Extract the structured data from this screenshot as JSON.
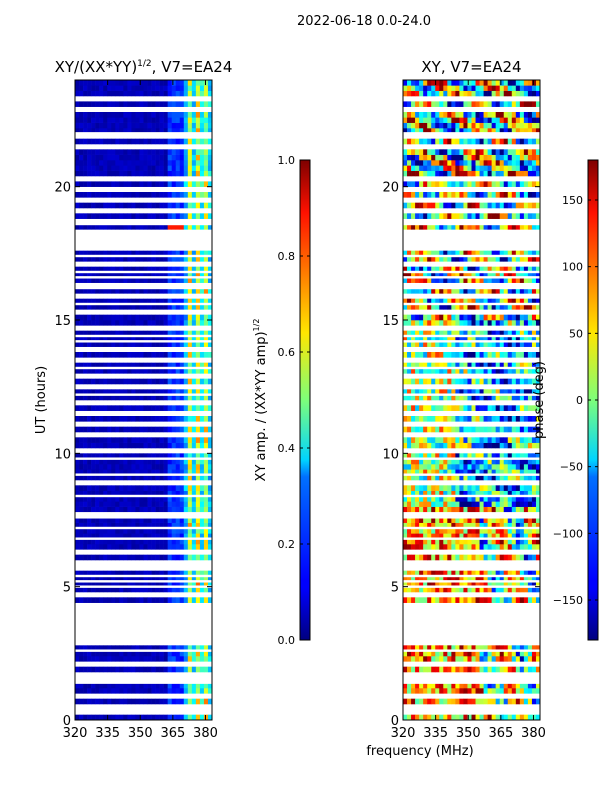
{
  "suptitle": "2022-06-18 0.0-24.0",
  "chart_data": [
    {
      "type": "heatmap",
      "title_main": "XY/(XX*YY)",
      "title_sup": "1/2",
      "title_tail": ", V7=EA24",
      "xlabel": "",
      "ylabel": "UT (hours)",
      "xlim": [
        320,
        383
      ],
      "ylim": [
        0,
        24
      ],
      "xticks": [
        320,
        335,
        350,
        365,
        380
      ],
      "yticks": [
        0,
        5,
        10,
        15,
        20
      ],
      "colorbar": {
        "label_main": "XY amp. / (XX*YY amp)",
        "label_sup": "1/2",
        "range": [
          0.0,
          1.0
        ],
        "ticks": [
          0.0,
          0.2,
          0.4,
          0.6,
          0.8,
          1.0
        ],
        "tick_labels": [
          "0.0",
          "0.2",
          "0.4",
          "0.6",
          "0.8",
          "1.0"
        ],
        "colormap": "jet"
      },
      "description": "Normalized XY amplitude vs frequency (x) and UT (y); low (~0.05) below 360 MHz, higher (~0.3-0.7) in vertical stripes at 362-381 MHz"
    },
    {
      "type": "heatmap",
      "title_main": "XY, V7=EA24",
      "xlabel": "frequency (MHz)",
      "ylabel": "",
      "xlim": [
        320,
        383
      ],
      "ylim": [
        0,
        24
      ],
      "xticks": [
        320,
        335,
        350,
        365,
        380
      ],
      "yticks": [
        0,
        5,
        10,
        15,
        20
      ],
      "colorbar": {
        "label_main": "phase (deg)",
        "range": [
          -180,
          180
        ],
        "ticks": [
          -150,
          -100,
          -50,
          0,
          50,
          100,
          150
        ],
        "tick_labels": [
          "−150",
          "−100",
          "−50",
          "0",
          "50",
          "100",
          "150"
        ],
        "colormap": "jet"
      },
      "description": "XY phase vs frequency and UT; noisy, warm (positive) phases dominate 0-8 h, blue (negative) 8-15 h, mixed above"
    }
  ],
  "blank_rows_hours": [
    0.3,
    0.5,
    0.9,
    1.4,
    1.45,
    1.7,
    2.1,
    2.6,
    2.95,
    3.05,
    3.3,
    3.5,
    3.7,
    3.95,
    4.05,
    4.3,
    4.7,
    5.0,
    5.2,
    5.4,
    5.7,
    5.9,
    6.3,
    6.8,
    7.2,
    7.6,
    7.75,
    8.4,
    8.9,
    9.2,
    9.8,
    10.1,
    10.7,
    11.1,
    11.5,
    11.9,
    12.2,
    12.5,
    12.9,
    13.2,
    13.5,
    13.9,
    14.2,
    14.4,
    14.7,
    15.3,
    15.6,
    15.9,
    16.2,
    16.3,
    16.6,
    16.8,
    17.1,
    17.4,
    17.7,
    17.9,
    18.1,
    18.3,
    18.6,
    18.7,
    19.1,
    19.5,
    19.9,
    20.25,
    21.5,
    21.9,
    22.0,
    22.9,
    23.25
  ]
}
